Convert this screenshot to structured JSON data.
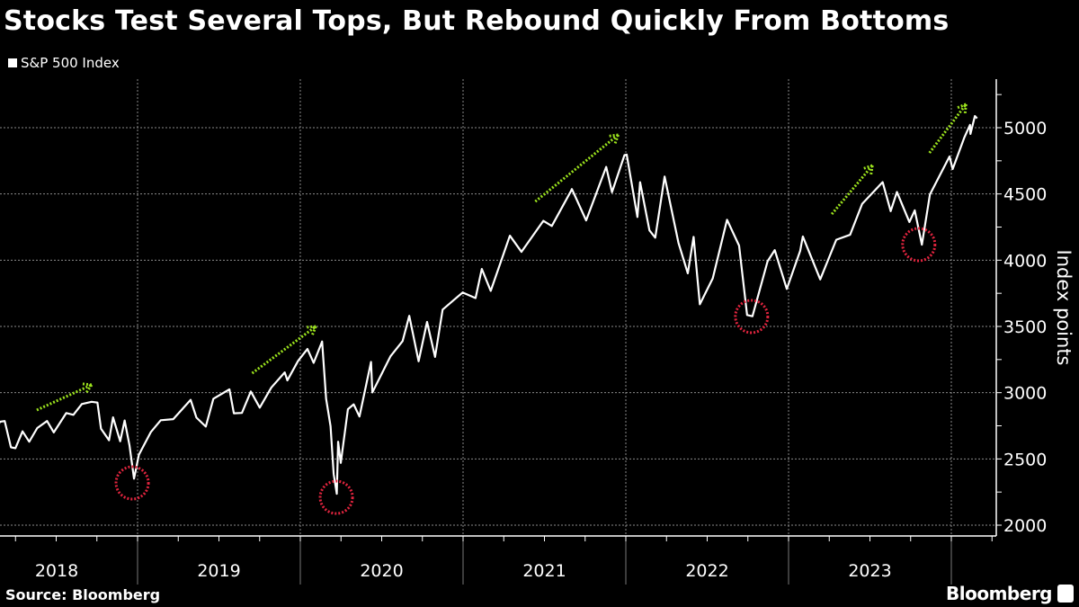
{
  "title": "Stocks Test Several Tops, But Rebound Quickly From Bottoms",
  "source": "Source: Bloomberg",
  "brand": "Bloomberg",
  "chart_data": {
    "type": "line",
    "title": "Stocks Test Several Tops, But Rebound Quickly From Bottoms",
    "ylabel": "Index points",
    "xlabel": "",
    "ylim": [
      1950,
      5350
    ],
    "yticks": [
      2000,
      2500,
      3000,
      3500,
      4000,
      4500,
      5000
    ],
    "ytick_labels": [
      "2000",
      "2500",
      "3000",
      "3500",
      "4000",
      "4500",
      "5000"
    ],
    "xtick_labels": [
      "2018",
      "2019",
      "2020",
      "2021",
      "2022",
      "2023"
    ],
    "grid": true,
    "legend": "top-left",
    "y_axis_side": "right",
    "colors": {
      "background": "#000000",
      "line": "#ffffff",
      "grid": "#8a8a8a",
      "arrow": "#9be21d",
      "circle": "#e0243e"
    },
    "series": [
      {
        "name": "S&P 500 Index",
        "points": [
          [
            "2018-02-02",
            2762
          ],
          [
            "2018-02-09",
            2620
          ],
          [
            "2018-02-26",
            2780
          ],
          [
            "2018-03-09",
            2786
          ],
          [
            "2018-03-23",
            2588
          ],
          [
            "2018-04-02",
            2581
          ],
          [
            "2018-04-18",
            2708
          ],
          [
            "2018-05-03",
            2630
          ],
          [
            "2018-05-21",
            2733
          ],
          [
            "2018-06-12",
            2786
          ],
          [
            "2018-06-27",
            2700
          ],
          [
            "2018-07-25",
            2846
          ],
          [
            "2018-08-10",
            2833
          ],
          [
            "2018-08-29",
            2914
          ],
          [
            "2018-09-20",
            2931
          ],
          [
            "2018-10-03",
            2925
          ],
          [
            "2018-10-11",
            2728
          ],
          [
            "2018-10-29",
            2641
          ],
          [
            "2018-11-07",
            2814
          ],
          [
            "2018-11-23",
            2633
          ],
          [
            "2018-12-03",
            2790
          ],
          [
            "2018-12-14",
            2600
          ],
          [
            "2018-12-24",
            2351
          ],
          [
            "2019-01-04",
            2532
          ],
          [
            "2019-01-31",
            2704
          ],
          [
            "2019-02-22",
            2792
          ],
          [
            "2019-03-22",
            2800
          ],
          [
            "2019-04-30",
            2946
          ],
          [
            "2019-05-13",
            2812
          ],
          [
            "2019-06-03",
            2744
          ],
          [
            "2019-06-20",
            2954
          ],
          [
            "2019-07-26",
            3025
          ],
          [
            "2019-08-05",
            2844
          ],
          [
            "2019-08-23",
            2847
          ],
          [
            "2019-09-12",
            3009
          ],
          [
            "2019-10-02",
            2887
          ],
          [
            "2019-10-28",
            3039
          ],
          [
            "2019-11-27",
            3153
          ],
          [
            "2019-12-03",
            3093
          ],
          [
            "2019-12-27",
            3240
          ],
          [
            "2020-01-17",
            3330
          ],
          [
            "2020-01-31",
            3225
          ],
          [
            "2020-02-19",
            3386
          ],
          [
            "2020-02-28",
            2954
          ],
          [
            "2020-03-09",
            2746
          ],
          [
            "2020-03-16",
            2386
          ],
          [
            "2020-03-23",
            2237
          ],
          [
            "2020-03-26",
            2630
          ],
          [
            "2020-04-01",
            2470
          ],
          [
            "2020-04-17",
            2875
          ],
          [
            "2020-04-30",
            2912
          ],
          [
            "2020-05-13",
            2820
          ],
          [
            "2020-06-08",
            3232
          ],
          [
            "2020-06-11",
            3002
          ],
          [
            "2020-07-22",
            3276
          ],
          [
            "2020-08-18",
            3389
          ],
          [
            "2020-09-02",
            3580
          ],
          [
            "2020-09-23",
            3237
          ],
          [
            "2020-10-12",
            3534
          ],
          [
            "2020-10-30",
            3270
          ],
          [
            "2020-11-16",
            3627
          ],
          [
            "2020-12-31",
            3756
          ],
          [
            "2021-01-29",
            3714
          ],
          [
            "2021-02-12",
            3934
          ],
          [
            "2021-03-04",
            3768
          ],
          [
            "2021-04-16",
            4185
          ],
          [
            "2021-05-12",
            4063
          ],
          [
            "2021-06-30",
            4297
          ],
          [
            "2021-07-19",
            4258
          ],
          [
            "2021-08-31",
            4522
          ],
          [
            "2021-09-02",
            4537
          ],
          [
            "2021-10-04",
            4300
          ],
          [
            "2021-11-18",
            4704
          ],
          [
            "2021-12-01",
            4513
          ],
          [
            "2021-12-29",
            4793
          ],
          [
            "2022-01-03",
            4797
          ],
          [
            "2022-01-27",
            4326
          ],
          [
            "2022-02-02",
            4589
          ],
          [
            "2022-02-23",
            4225
          ],
          [
            "2022-03-08",
            4170
          ],
          [
            "2022-03-29",
            4631
          ],
          [
            "2022-04-29",
            4132
          ],
          [
            "2022-05-20",
            3901
          ],
          [
            "2022-06-02",
            4176
          ],
          [
            "2022-06-16",
            3667
          ],
          [
            "2022-07-15",
            3863
          ],
          [
            "2022-08-16",
            4305
          ],
          [
            "2022-09-12",
            4110
          ],
          [
            "2022-09-30",
            3586
          ],
          [
            "2022-10-12",
            3577
          ],
          [
            "2022-11-15",
            3992
          ],
          [
            "2022-12-01",
            4076
          ],
          [
            "2022-12-28",
            3783
          ],
          [
            "2023-01-27",
            4070
          ],
          [
            "2023-02-02",
            4179
          ],
          [
            "2023-03-13",
            3855
          ],
          [
            "2023-04-18",
            4154
          ],
          [
            "2023-05-19",
            4192
          ],
          [
            "2023-06-15",
            4425
          ],
          [
            "2023-07-31",
            4589
          ],
          [
            "2023-08-18",
            4370
          ],
          [
            "2023-09-01",
            4515
          ],
          [
            "2023-09-29",
            4288
          ],
          [
            "2023-10-11",
            4376
          ],
          [
            "2023-10-27",
            4117
          ],
          [
            "2023-11-14",
            4496
          ],
          [
            "2023-12-28",
            4783
          ],
          [
            "2024-01-04",
            4688
          ],
          [
            "2024-01-30",
            4924
          ],
          [
            "2024-02-12",
            5021
          ],
          [
            "2024-02-13",
            4953
          ],
          [
            "2024-02-23",
            5088
          ],
          [
            "2024-02-28",
            5070
          ]
        ]
      }
    ],
    "annotations": {
      "arrows": [
        {
          "from": [
            "2018-05-20",
            2869
          ],
          "to": [
            "2018-09-20",
            3059
          ]
        },
        {
          "from": [
            "2019-09-15",
            3147
          ],
          "to": [
            "2020-02-05",
            3500
          ]
        },
        {
          "from": [
            "2021-06-12",
            4443
          ],
          "to": [
            "2021-12-15",
            4946
          ]
        },
        {
          "from": [
            "2023-04-08",
            4348
          ],
          "to": [
            "2023-07-08",
            4715
          ]
        },
        {
          "from": [
            "2023-11-13",
            4810
          ],
          "to": [
            "2024-02-03",
            5177
          ]
        }
      ],
      "circles": [
        {
          "center": [
            "2018-12-20",
            2319
          ]
        },
        {
          "center": [
            "2020-03-22",
            2210
          ]
        },
        {
          "center": [
            "2022-10-10",
            3575
          ]
        },
        {
          "center": [
            "2023-10-20",
            4118
          ]
        }
      ]
    }
  }
}
